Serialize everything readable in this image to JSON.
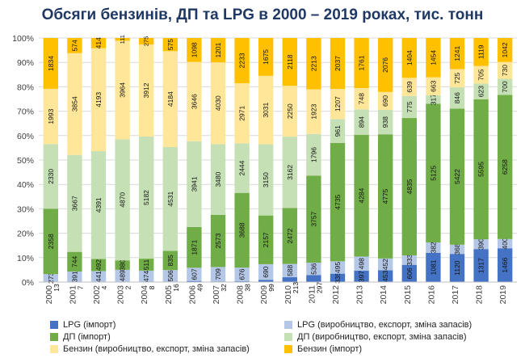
{
  "colors": {
    "lpg_import": "#4472c4",
    "lpg_prod": "#b4c7e7",
    "dp_import": "#70ad47",
    "dp_prod": "#c5e0b4",
    "benzin_prod": "#ffe699",
    "benzin_import": "#ffc000",
    "axis_text": "#404040",
    "grid": "#d9d9d9",
    "title": "#1f3864"
  },
  "chart_data": {
    "type": "bar",
    "stacked": "percent",
    "title": "Обсяги бензинів, ДП та LPG в 2000 – 2019 роках, тис. тонн",
    "xlabel": "",
    "ylabel": "",
    "ylim": [
      0,
      100
    ],
    "y_ticks": [
      "0%",
      "10%",
      "20%",
      "30%",
      "40%",
      "50%",
      "60%",
      "70%",
      "80%",
      "90%",
      "100%"
    ],
    "grid": true,
    "legend_position": "bottom",
    "categories": [
      "2000",
      "2001",
      "2002",
      "2003",
      "2004",
      "2005",
      "2006",
      "2007",
      "2008",
      "2009",
      "2010",
      "2011",
      "2012",
      "2013",
      "2014",
      "2015",
      "2016",
      "2017",
      "2018",
      "2019"
    ],
    "series": [
      {
        "name": "LPG (імпорт)",
        "color_key": "lpg_import",
        "values": [
          13,
          7,
          4,
          2,
          8,
          16,
          49,
          32,
          38,
          99,
          213,
          297,
          335,
          397,
          453,
          606,
          1081,
          1120,
          1317,
          1466
        ]
      },
      {
        "name": "LPG (виробництво, експорт, зміна запасів)",
        "color_key": "lpg_prod",
        "values": [
          273,
          391,
          441,
          489,
          474,
          506,
          607,
          709,
          676,
          690,
          588,
          536,
          495,
          498,
          452,
          333,
          382,
          368,
          390,
          400
        ]
      },
      {
        "name": "ДП (імпорт)",
        "color_key": "dp_import",
        "values": [
          2358,
          744,
          492,
          380,
          511,
          835,
          1871,
          2573,
          3688,
          2157,
          2472,
          3757,
          4735,
          4284,
          4775,
          4835,
          5125,
          5422,
          5595,
          6258
        ]
      },
      {
        "name": "ДП (виробництво, експорт, зміна запасів)",
        "color_key": "dp_prod",
        "values": [
          2330,
          3667,
          4391,
          4870,
          5182,
          4531,
          3941,
          3480,
          2444,
          3150,
          3162,
          1796,
          961,
          894,
          938,
          775,
          317,
          846,
          623,
          700
        ]
      },
      {
        "name": "Бензин (виробництво, експорт, зміна запасів)",
        "color_key": "benzin_prod",
        "values": [
          1993,
          3854,
          4193,
          3964,
          3912,
          4184,
          3646,
          4030,
          2971,
          3031,
          2250,
          1923,
          1207,
          748,
          690,
          639,
          663,
          725,
          705,
          730
        ]
      },
      {
        "name": "Бензин (імпорт)",
        "color_key": "benzin_import",
        "values": [
          1834,
          574,
          414,
          111,
          275,
          575,
          1098,
          1201,
          2233,
          1675,
          2118,
          2213,
          2037,
          1761,
          2076,
          1404,
          1454,
          1241,
          1119,
          1042
        ]
      }
    ]
  }
}
